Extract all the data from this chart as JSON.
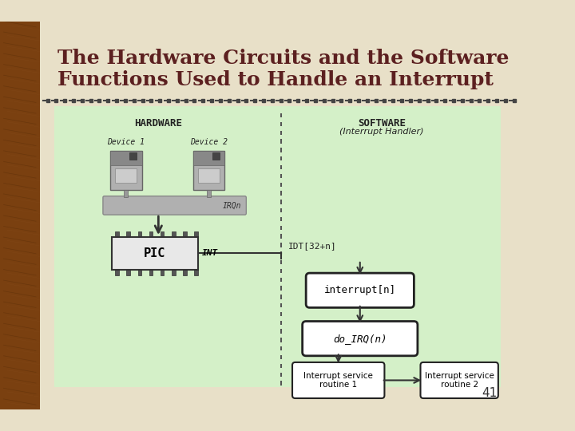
{
  "title_line1": "The Hardware Circuits and the Software",
  "title_line2": "Functions Used to Handle an Interrupt",
  "page_number": "41",
  "bg_color": "#d4c9a8",
  "slide_bg": "#e8e0c8",
  "diagram_bg": "#d4f0c8",
  "title_color": "#5c2020",
  "hardware_label": "HARDWARE",
  "software_label": "SOFTWARE",
  "software_sublabel": "(Interrupt Handler)",
  "device1_label": "Device 1",
  "device2_label": "Device 2",
  "irqn_label": "IRQn",
  "int_label": "INT",
  "idt_label": "IDT[32+n]",
  "pic_label": "PIC",
  "interrupt_n_label": "interrupt[n]",
  "do_irq_label": "do_IRQ(n)",
  "isr1_label": "Interrupt service\nroutine 1",
  "isr2_label": "Interrupt service\nroutine 2"
}
